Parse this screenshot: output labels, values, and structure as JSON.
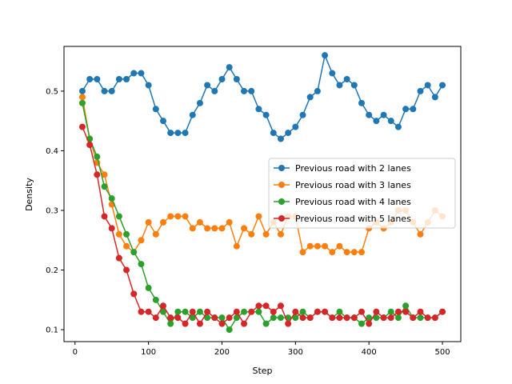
{
  "chart_data": {
    "type": "line",
    "xlabel": "Step",
    "ylabel": "Density",
    "xlim": [
      -15,
      525
    ],
    "ylim": [
      0.08,
      0.575
    ],
    "x_ticks": [
      0,
      100,
      200,
      300,
      400,
      500
    ],
    "y_ticks": [
      0.1,
      0.2,
      0.3,
      0.4,
      0.5
    ],
    "grid": false,
    "legend_position": "center-right",
    "x": [
      10,
      20,
      30,
      40,
      50,
      60,
      70,
      80,
      90,
      100,
      110,
      120,
      130,
      140,
      150,
      160,
      170,
      180,
      190,
      200,
      210,
      220,
      230,
      240,
      250,
      260,
      270,
      280,
      290,
      300,
      310,
      320,
      330,
      340,
      350,
      360,
      370,
      380,
      390,
      400,
      410,
      420,
      430,
      440,
      450,
      460,
      470,
      480,
      490,
      500
    ],
    "series": [
      {
        "name": "Previous road with 2 lanes",
        "color": "#1f77b4",
        "values": [
          0.5,
          0.52,
          0.52,
          0.5,
          0.5,
          0.52,
          0.52,
          0.53,
          0.53,
          0.51,
          0.47,
          0.45,
          0.43,
          0.43,
          0.43,
          0.46,
          0.48,
          0.51,
          0.5,
          0.52,
          0.54,
          0.52,
          0.5,
          0.5,
          0.47,
          0.46,
          0.43,
          0.42,
          0.43,
          0.44,
          0.46,
          0.49,
          0.5,
          0.56,
          0.53,
          0.51,
          0.52,
          0.51,
          0.48,
          0.46,
          0.45,
          0.46,
          0.45,
          0.44,
          0.47,
          0.47,
          0.5,
          0.51,
          0.49,
          0.51
        ]
      },
      {
        "name": "Previous road with 3 lanes",
        "color": "#ff7f0e",
        "values": [
          0.49,
          0.42,
          0.38,
          0.36,
          0.31,
          0.26,
          0.24,
          0.23,
          0.25,
          0.28,
          0.26,
          0.28,
          0.29,
          0.29,
          0.29,
          0.27,
          0.28,
          0.27,
          0.27,
          0.27,
          0.28,
          0.24,
          0.27,
          0.26,
          0.29,
          0.26,
          0.28,
          0.26,
          0.29,
          0.29,
          0.23,
          0.24,
          0.24,
          0.24,
          0.23,
          0.24,
          0.23,
          0.23,
          0.23,
          0.27,
          0.28,
          0.27,
          0.28,
          0.3,
          0.3,
          0.28,
          0.26,
          0.28,
          0.3,
          0.29
        ]
      },
      {
        "name": "Previous road with 4 lanes",
        "color": "#2ca02c",
        "values": [
          0.48,
          0.42,
          0.39,
          0.34,
          0.32,
          0.29,
          0.26,
          0.23,
          0.21,
          0.17,
          0.15,
          0.13,
          0.11,
          0.13,
          0.13,
          0.12,
          0.13,
          0.12,
          0.12,
          0.12,
          0.1,
          0.12,
          0.13,
          0.13,
          0.13,
          0.11,
          0.12,
          0.12,
          0.12,
          0.12,
          0.13,
          0.12,
          0.13,
          0.13,
          0.12,
          0.13,
          0.12,
          0.12,
          0.11,
          0.12,
          0.12,
          0.12,
          0.13,
          0.12,
          0.14,
          0.12,
          0.12,
          0.12,
          0.12,
          0.13
        ]
      },
      {
        "name": "Previous road with 5 lanes",
        "color": "#d62728",
        "values": [
          0.44,
          0.41,
          0.36,
          0.29,
          0.27,
          0.22,
          0.2,
          0.16,
          0.13,
          0.13,
          0.12,
          0.14,
          0.12,
          0.12,
          0.11,
          0.13,
          0.11,
          0.13,
          0.12,
          0.11,
          0.12,
          0.13,
          0.11,
          0.13,
          0.14,
          0.14,
          0.13,
          0.14,
          0.11,
          0.13,
          0.12,
          0.12,
          0.13,
          0.13,
          0.12,
          0.12,
          0.12,
          0.12,
          0.13,
          0.11,
          0.13,
          0.12,
          0.12,
          0.13,
          0.13,
          0.12,
          0.13,
          0.12,
          0.12,
          0.13
        ]
      }
    ]
  }
}
